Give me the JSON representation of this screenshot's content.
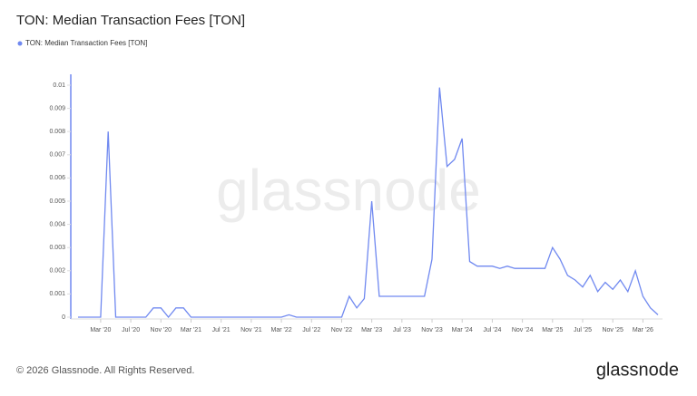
{
  "chart_data": {
    "type": "line",
    "title": "TON: Median Transaction Fees [TON]",
    "x": [
      "2019-12",
      "2020-01",
      "2020-02",
      "2020-03",
      "2020-04",
      "2020-05",
      "2020-06",
      "2020-07",
      "2020-08",
      "2020-09",
      "2020-10",
      "2020-11",
      "2020-12",
      "2021-01",
      "2021-02",
      "2021-03",
      "2021-04",
      "2021-05",
      "2021-06",
      "2021-07",
      "2021-08",
      "2021-09",
      "2021-10",
      "2021-11",
      "2021-12",
      "2022-01",
      "2022-02",
      "2022-03",
      "2022-04",
      "2022-05",
      "2022-06",
      "2022-07",
      "2022-08",
      "2022-09",
      "2022-10",
      "2022-11",
      "2022-12",
      "2023-01",
      "2023-02",
      "2023-03",
      "2023-04",
      "2023-05",
      "2023-06",
      "2023-07",
      "2023-08",
      "2023-09",
      "2023-10",
      "2023-11",
      "2023-12",
      "2024-01",
      "2024-02",
      "2024-03",
      "2024-04",
      "2024-05",
      "2024-06",
      "2024-07",
      "2024-08",
      "2024-09",
      "2024-10",
      "2024-11",
      "2024-12",
      "2025-01",
      "2025-02",
      "2025-03",
      "2025-04",
      "2025-05",
      "2025-06",
      "2025-07",
      "2025-08",
      "2025-09",
      "2025-10",
      "2025-11",
      "2025-12",
      "2026-01",
      "2026-02",
      "2026-03",
      "2026-04",
      "2026-05"
    ],
    "series": [
      {
        "name": "TON: Median Transaction Fees [TON]",
        "color": "#7089f0",
        "values": [
          0,
          0,
          0,
          0,
          0.008,
          0,
          0,
          0,
          0,
          0,
          0.0004,
          0.0004,
          0,
          0.0004,
          0.0004,
          0,
          0,
          0,
          0,
          0,
          0,
          0,
          0,
          0,
          0,
          0,
          0,
          0,
          0.0001,
          0,
          0,
          0,
          0,
          0,
          0,
          0,
          0.0009,
          0.0004,
          0.0008,
          0.005,
          0.0009,
          0.0009,
          0.0009,
          0.0009,
          0.0009,
          0.0009,
          0.0009,
          0.0025,
          0.0099,
          0.0065,
          0.0068,
          0.0077,
          0.0024,
          0.0022,
          0.0022,
          0.0022,
          0.0021,
          0.0022,
          0.0021,
          0.0021,
          0.0021,
          0.0021,
          0.0021,
          0.003,
          0.0025,
          0.0018,
          0.0016,
          0.0013,
          0.0018,
          0.0011,
          0.0015,
          0.0012,
          0.0016,
          0.0011,
          0.002,
          0.0009,
          0.0004,
          0.0001
        ]
      }
    ],
    "xlim": [
      "2019-12",
      "2026-05"
    ],
    "xticks": [
      {
        "value": "2020-03",
        "label": "Mar '20"
      },
      {
        "value": "2020-07",
        "label": "Jul '20"
      },
      {
        "value": "2020-11",
        "label": "Nov '20"
      },
      {
        "value": "2021-03",
        "label": "Mar '21"
      },
      {
        "value": "2021-07",
        "label": "Jul '21"
      },
      {
        "value": "2021-11",
        "label": "Nov '21"
      },
      {
        "value": "2022-03",
        "label": "Mar '22"
      },
      {
        "value": "2022-07",
        "label": "Jul '22"
      },
      {
        "value": "2022-11",
        "label": "Nov '22"
      },
      {
        "value": "2023-03",
        "label": "Mar '23"
      },
      {
        "value": "2023-07",
        "label": "Jul '23"
      },
      {
        "value": "2023-11",
        "label": "Nov '23"
      },
      {
        "value": "2024-03",
        "label": "Mar '24"
      },
      {
        "value": "2024-07",
        "label": "Jul '24"
      },
      {
        "value": "2024-11",
        "label": "Nov '24"
      },
      {
        "value": "2025-03",
        "label": "Mar '25"
      },
      {
        "value": "2025-07",
        "label": "Jul '25"
      },
      {
        "value": "2025-11",
        "label": "Nov '25"
      },
      {
        "value": "2026-03",
        "label": "Mar '26"
      }
    ],
    "ylim": [
      0,
      0.01
    ],
    "yticks": [
      0,
      0.001,
      0.002,
      0.003,
      0.004,
      0.005,
      0.006,
      0.007,
      0.008,
      0.009,
      0.01
    ]
  },
  "watermark": "glassnode",
  "footer": "© 2026 Glassnode. All Rights Reserved.",
  "brand": "glassnode"
}
